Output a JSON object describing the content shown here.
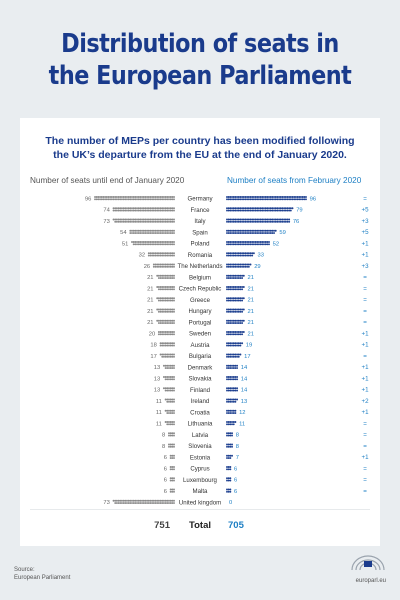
{
  "header": {
    "title_line1": "Distribution of seats in",
    "title_line2": "the European Parliament"
  },
  "card": {
    "subtitle_line1": "The number of MEPs per country has been modified following",
    "subtitle_line2": "the UK’s departure from the EU at the end of January 2020.",
    "left_header": "Number of seats until end of January 2020",
    "right_header": "Number of seats from February 2020"
  },
  "totals": {
    "before": "751",
    "label": "Total",
    "after": "705"
  },
  "footer": {
    "source_label": "Source:",
    "source_name": "European Parliament",
    "site": "europarl.eu"
  },
  "colors": {
    "title": "#1a3b8c",
    "before_dots": "#8a8a8a",
    "after_dots": "#1d3f8f",
    "after_text": "#1d7fc4",
    "background": "#e9edf0"
  },
  "chart_data": {
    "type": "dot-comparison",
    "categories": [
      "Germany",
      "France",
      "Italy",
      "Spain",
      "Poland",
      "Romania",
      "The Netherlands",
      "Belgium",
      "Czech Republic",
      "Greece",
      "Hungary",
      "Portugal",
      "Sweden",
      "Austria",
      "Bulgaria",
      "Denmark",
      "Slovakia",
      "Finland",
      "Ireland",
      "Croatia",
      "Lithuania",
      "Latvia",
      "Slovenia",
      "Estonia",
      "Cyprus",
      "Luxembourg",
      "Malta",
      "United kingdom"
    ],
    "series": [
      {
        "name": "Number of seats until end of January 2020",
        "values": [
          96,
          74,
          73,
          54,
          51,
          32,
          26,
          21,
          21,
          21,
          21,
          21,
          20,
          18,
          17,
          13,
          13,
          13,
          11,
          11,
          11,
          8,
          8,
          6,
          6,
          6,
          6,
          73
        ]
      },
      {
        "name": "Number of seats from February 2020",
        "values": [
          96,
          79,
          76,
          59,
          52,
          33,
          29,
          21,
          21,
          21,
          21,
          21,
          21,
          19,
          17,
          14,
          14,
          14,
          13,
          12,
          11,
          8,
          8,
          7,
          6,
          6,
          6,
          0
        ]
      }
    ],
    "changes": [
      "=",
      "+5",
      "+3",
      "+5",
      "+1",
      "+1",
      "+3",
      "=",
      "=",
      "=",
      "=",
      "=",
      "+1",
      "+1",
      "=",
      "+1",
      "+1",
      "+1",
      "+2",
      "+1",
      "=",
      "=",
      "=",
      "+1",
      "=",
      "=",
      "=",
      ""
    ],
    "totals": {
      "before": 751,
      "after": 705
    }
  }
}
